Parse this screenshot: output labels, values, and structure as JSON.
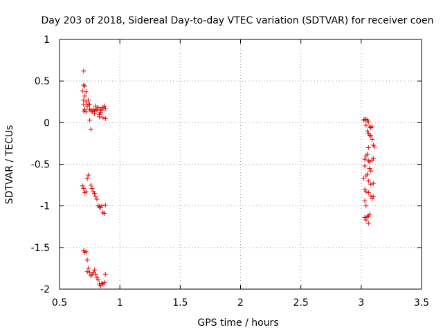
{
  "chart_data": {
    "type": "scatter",
    "title": "Day 203 of 2018, Sidereal Day-to-day VTEC variation (SDTVAR) for receiver coen",
    "xlabel": "GPS time / hours",
    "ylabel": "SDTVAR / TECUs",
    "xlim": [
      0.5,
      3.5
    ],
    "ylim": [
      -2,
      1
    ],
    "x_ticks": [
      "0.5",
      "1",
      "1.5",
      "2",
      "2.5",
      "3",
      "3.5"
    ],
    "y_ticks": [
      "1",
      "0.5",
      "0",
      "-0.5",
      "-1",
      "-1.5",
      "-2"
    ],
    "grid": true,
    "marker": "+",
    "color": "#e00000",
    "series": [
      {
        "name": "SDTVAR",
        "points": [
          [
            0.7,
            0.62
          ],
          [
            0.7,
            0.45
          ],
          [
            0.71,
            0.44
          ],
          [
            0.69,
            0.38
          ],
          [
            0.72,
            0.37
          ],
          [
            0.71,
            0.32
          ],
          [
            0.7,
            0.27
          ],
          [
            0.72,
            0.25
          ],
          [
            0.74,
            0.27
          ],
          [
            0.74,
            0.22
          ],
          [
            0.75,
            0.22
          ],
          [
            0.7,
            0.22
          ],
          [
            0.73,
            0.2
          ],
          [
            0.71,
            0.16
          ],
          [
            0.7,
            0.14
          ],
          [
            0.72,
            0.13
          ],
          [
            0.75,
            0.16
          ],
          [
            0.77,
            0.13
          ],
          [
            0.76,
            0.15
          ],
          [
            0.78,
            0.16
          ],
          [
            0.79,
            0.11
          ],
          [
            0.8,
            0.2
          ],
          [
            0.81,
            0.15
          ],
          [
            0.82,
            0.18
          ],
          [
            0.83,
            0.1
          ],
          [
            0.84,
            0.12
          ],
          [
            0.85,
            0.15
          ],
          [
            0.86,
            0.18
          ],
          [
            0.87,
            0.2
          ],
          [
            0.88,
            0.17
          ],
          [
            0.83,
            0.07
          ],
          [
            0.86,
            0.06
          ],
          [
            0.88,
            0.05
          ],
          [
            0.75,
            0.03
          ],
          [
            0.76,
            -0.08
          ],
          [
            0.8,
            0.16
          ],
          [
            0.79,
            0.14
          ],
          [
            0.84,
            0.16
          ],
          [
            0.69,
            -0.76
          ],
          [
            0.7,
            -0.79
          ],
          [
            0.71,
            -0.84
          ],
          [
            0.72,
            -0.83
          ],
          [
            0.73,
            -0.67
          ],
          [
            0.74,
            -0.63
          ],
          [
            0.76,
            -0.75
          ],
          [
            0.77,
            -0.79
          ],
          [
            0.78,
            -0.83
          ],
          [
            0.79,
            -0.85
          ],
          [
            0.8,
            -0.89
          ],
          [
            0.81,
            -0.92
          ],
          [
            0.82,
            -1.0
          ],
          [
            0.83,
            -1.01
          ],
          [
            0.84,
            -1.02
          ],
          [
            0.85,
            -1.0
          ],
          [
            0.86,
            -1.08
          ],
          [
            0.87,
            -1.09
          ],
          [
            0.88,
            -0.99
          ],
          [
            0.7,
            -1.54
          ],
          [
            0.71,
            -1.56
          ],
          [
            0.72,
            -1.55
          ],
          [
            0.73,
            -1.65
          ],
          [
            0.74,
            -1.75
          ],
          [
            0.73,
            -1.79
          ],
          [
            0.75,
            -1.8
          ],
          [
            0.76,
            -1.84
          ],
          [
            0.77,
            -1.82
          ],
          [
            0.78,
            -1.8
          ],
          [
            0.79,
            -1.77
          ],
          [
            0.8,
            -1.82
          ],
          [
            0.81,
            -1.86
          ],
          [
            0.82,
            -1.89
          ],
          [
            0.83,
            -1.94
          ],
          [
            0.84,
            -1.96
          ],
          [
            0.85,
            -1.93
          ],
          [
            0.86,
            -1.94
          ],
          [
            0.87,
            -1.92
          ],
          [
            0.88,
            -1.82
          ],
          [
            3.02,
            0.03
          ],
          [
            3.03,
            0.04
          ],
          [
            3.04,
            0.04
          ],
          [
            3.05,
            0.03
          ],
          [
            3.06,
            0.01
          ],
          [
            3.04,
            -0.03
          ],
          [
            3.07,
            -0.05
          ],
          [
            3.08,
            -0.06
          ],
          [
            3.09,
            -0.05
          ],
          [
            3.05,
            -0.1
          ],
          [
            3.06,
            -0.13
          ],
          [
            3.07,
            -0.15
          ],
          [
            3.08,
            -0.16
          ],
          [
            3.09,
            -0.2
          ],
          [
            3.1,
            -0.27
          ],
          [
            3.11,
            -0.29
          ],
          [
            3.06,
            -0.3
          ],
          [
            3.05,
            -0.38
          ],
          [
            3.04,
            -0.4
          ],
          [
            3.03,
            -0.44
          ],
          [
            3.06,
            -0.46
          ],
          [
            3.07,
            -0.47
          ],
          [
            3.09,
            -0.45
          ],
          [
            3.1,
            -0.43
          ],
          [
            3.03,
            -0.52
          ],
          [
            3.07,
            -0.55
          ],
          [
            3.08,
            -0.58
          ],
          [
            3.05,
            -0.62
          ],
          [
            3.04,
            -0.64
          ],
          [
            3.02,
            -0.67
          ],
          [
            3.06,
            -0.7
          ],
          [
            3.08,
            -0.74
          ],
          [
            3.1,
            -0.73
          ],
          [
            3.03,
            -0.8
          ],
          [
            3.04,
            -0.83
          ],
          [
            3.06,
            -0.84
          ],
          [
            3.08,
            -0.88
          ],
          [
            3.1,
            -0.89
          ],
          [
            3.09,
            -0.91
          ],
          [
            3.03,
            -0.94
          ],
          [
            3.04,
            -1.0
          ],
          [
            3.07,
            -1.1
          ],
          [
            3.06,
            -1.12
          ],
          [
            3.05,
            -1.13
          ],
          [
            3.04,
            -1.17
          ],
          [
            3.03,
            -1.14
          ],
          [
            3.06,
            -1.21
          ]
        ]
      }
    ]
  }
}
